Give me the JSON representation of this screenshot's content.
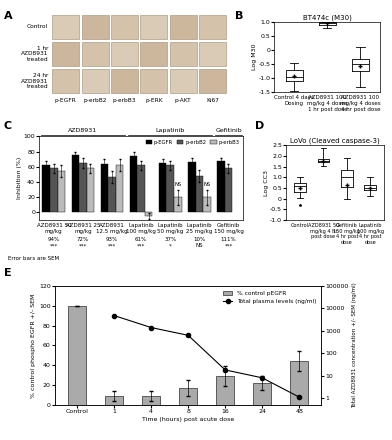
{
  "panel_a": {
    "label": "A",
    "rows": [
      "Control",
      "1 hr AZD8931 treated",
      "24 hr AZD8931 treated"
    ],
    "columns": [
      "p-EGFR",
      "p-erbB2",
      "p-erbB3",
      "p-ERK",
      "p-AKT",
      "Ki67"
    ]
  },
  "chart_data": [
    {
      "panel": "B",
      "type": "box",
      "title": "BT474c (M30)",
      "y_label": "Log M30",
      "categories": [
        "Control 4 days Dosing",
        "AZD8931 100 mg/kg 4 doses 1 hr post dose",
        "AZD8931 100 mg/kg 4 doses 4 hr post dose"
      ],
      "boxes": [
        {
          "whisker_low": -1.45,
          "q1": -1.1,
          "median": -0.95,
          "q3": -0.7,
          "whisker_high": -0.45,
          "mean": -0.9,
          "outliers": []
        },
        {
          "whisker_low": 0.78,
          "q1": 0.88,
          "median": 0.95,
          "q3": 0.99,
          "whisker_high": 1.0,
          "mean": 0.95,
          "outliers": []
        },
        {
          "whisker_low": -1.3,
          "q1": -0.75,
          "median": -0.5,
          "q3": -0.3,
          "whisker_high": 0.1,
          "mean": -0.55,
          "outliers": []
        }
      ],
      "ylim": [
        -1.5,
        1.0
      ],
      "yticks": [
        -1.5,
        -1.0,
        -0.5,
        0,
        0.5,
        1.0
      ]
    },
    {
      "panel": "C",
      "type": "bar",
      "y_label": "Inhibition (%)",
      "categories": [
        "AZD8931 50 mg/kg",
        "AZD8931 25 mg/kg",
        "AZD8931 12.5 mg/kg",
        "Lapatinib 100 mg/kg",
        "Lapatinib 50 mg/kg",
        "Lapatinib 25 mg/kg",
        "Gefitinib 150 mg/kg"
      ],
      "groups": [
        {
          "label": "AZD8931",
          "count": 3
        },
        {
          "label": "Lapatinib",
          "count": 3
        },
        {
          "label": "Gefitinib",
          "count": 1
        }
      ],
      "series": [
        {
          "name": "p-EGFR",
          "color": "#000000",
          "values": [
            62,
            76,
            64,
            74,
            65,
            66,
            68
          ],
          "errors": [
            6,
            4,
            6,
            5,
            5,
            5,
            4
          ]
        },
        {
          "name": "p-erbB2",
          "color": "#555555",
          "values": [
            58,
            65,
            47,
            62,
            62,
            48,
            58
          ],
          "errors": [
            6,
            6,
            8,
            6,
            6,
            8,
            6
          ]
        },
        {
          "name": "p-erbB3",
          "color": "#bbbbbb",
          "values": [
            55,
            58,
            62,
            -5,
            20,
            20,
            null
          ],
          "errors": [
            8,
            6,
            8,
            4,
            10,
            10,
            null
          ]
        }
      ],
      "inhibition_labels": [
        "94%",
        "72%",
        "93%",
        "61%",
        "37%",
        "10%",
        "111%"
      ],
      "significance": [
        "***",
        "***",
        "***",
        "***",
        "*",
        "NS",
        "***"
      ],
      "bar_notes": [
        {
          "category": "Lapatinib 50 mg/kg",
          "series": "p-erbB3",
          "text": "NS"
        },
        {
          "category": "Lapatinib 25 mg/kg",
          "series": "p-erbB3",
          "text": "NS"
        }
      ],
      "note": "Error bars are SEM",
      "ylim": [
        -10,
        100
      ],
      "yticks": [
        0,
        20,
        40,
        60,
        80,
        100
      ],
      "legend": "upper right"
    },
    {
      "panel": "D",
      "type": "box",
      "title": "LoVo (Cleaved caspase-3)",
      "y_label": "Log CC3",
      "categories": [
        "Control",
        "AZD8931 50 mg/kg 4 hr post dose",
        "Gefitinib 150 mg/kg 4 hr post dose",
        "Lapatinib 100 mg/kg 4 hr post dose"
      ],
      "boxes": [
        {
          "whisker_low": 0.05,
          "q1": 0.3,
          "median": 0.6,
          "q3": 0.75,
          "whisker_high": 1.0,
          "mean": 0.5,
          "outliers": [
            -0.3
          ]
        },
        {
          "whisker_low": 1.55,
          "q1": 1.7,
          "median": 1.75,
          "q3": 1.85,
          "whisker_high": 2.35,
          "mean": 1.75,
          "outliers": []
        },
        {
          "whisker_low": 0.0,
          "q1": 0.55,
          "median": 1.0,
          "q3": 1.35,
          "whisker_high": 1.9,
          "mean": 0.65,
          "outliers": []
        },
        {
          "whisker_low": 0.1,
          "q1": 0.4,
          "median": 0.5,
          "q3": 0.65,
          "whisker_high": 1.0,
          "mean": 0.5,
          "outliers": []
        }
      ],
      "ylim": [
        -1.0,
        2.5
      ],
      "yticks": [
        -1.0,
        -0.5,
        0,
        0.5,
        1.0,
        1.5,
        2.0,
        2.5
      ]
    },
    {
      "panel": "E",
      "type": "bar_line",
      "x_label": "Time (hours) post acute dose",
      "y_label": "% control phospho EGFR +/- SEM",
      "y2_label": "Total AZD8931 concentration +/- SEM (ng/ml)",
      "categories": [
        "Control",
        "1",
        "4",
        "8",
        "16",
        "24",
        "48"
      ],
      "series": [
        {
          "name": "% control pEGFR",
          "type": "bar",
          "color": "#aaaaaa",
          "values": [
            100,
            9,
            9,
            17,
            29,
            22,
            44
          ],
          "errors": [
            0,
            5,
            5,
            8,
            10,
            7,
            10
          ]
        },
        {
          "name": "Total plasma levels (ng/ml)",
          "type": "line",
          "axis": "y2",
          "color": "#000000",
          "marker": "o",
          "values": [
            null,
            4800,
            1400,
            630,
            18,
            8,
            1.1
          ]
        }
      ],
      "ylim": [
        0,
        120
      ],
      "yticks": [
        0,
        20,
        40,
        60,
        80,
        100,
        120
      ],
      "y2lim": [
        0.5,
        100000
      ],
      "y2ticks": [
        1,
        10,
        100,
        1000,
        10000,
        100000
      ],
      "log": "y2",
      "legend": "upper right"
    }
  ]
}
